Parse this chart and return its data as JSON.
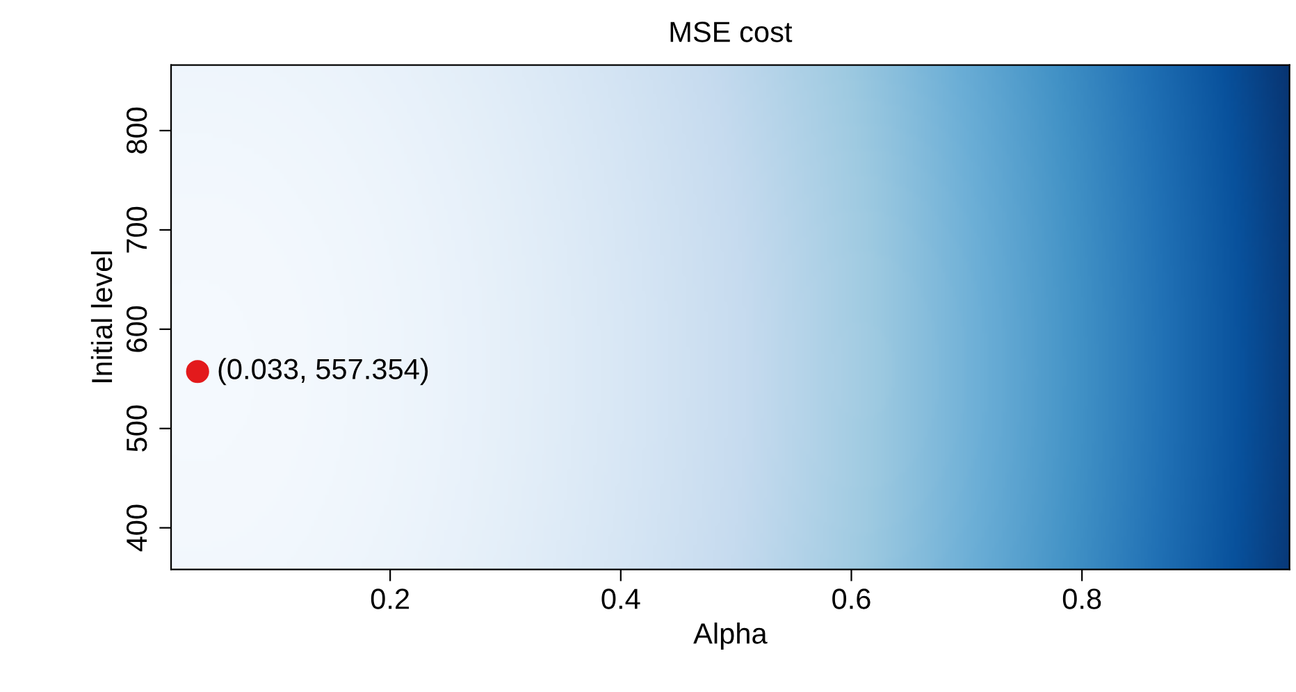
{
  "chart_data": {
    "type": "scatter",
    "title": "MSE cost",
    "xlabel": "Alpha",
    "ylabel": "Initial level",
    "x": [
      0.033
    ],
    "values": [
      557.354
    ],
    "color": "#e31a1c",
    "marker": "circle",
    "xlim": [
      0.01,
      0.98
    ],
    "xticks": [
      0.2,
      0.4,
      0.6,
      0.8
    ],
    "ylim": [
      358,
      866
    ],
    "yticks": [
      400,
      500,
      600,
      700,
      800
    ],
    "grid": false,
    "legend": false,
    "annotations": [
      {
        "text": "(0.033, 557.354)",
        "x": 0.033,
        "y": 557.354
      }
    ]
  }
}
